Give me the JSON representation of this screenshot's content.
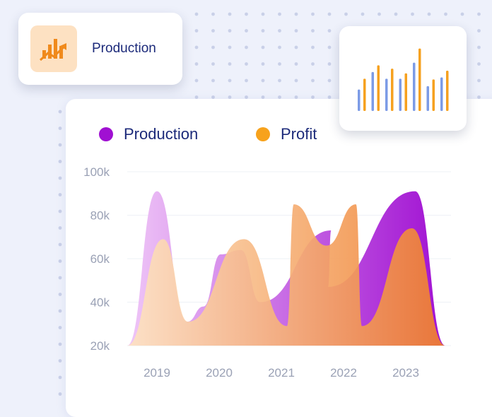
{
  "badge": {
    "title": "Production",
    "icon": "rising-bar-chart-icon"
  },
  "legend": [
    {
      "name": "Production",
      "color": "#a010d2"
    },
    {
      "name": "Profit",
      "color": "#f7a21c"
    }
  ],
  "colors": {
    "production_light": "#efc6f7",
    "production_dark": "#a010d2",
    "profit_light": "#fde3c3",
    "profit_dark": "#ef7e2c",
    "mini_blue": "#7c9be6",
    "mini_orange": "#f6a11f"
  },
  "chart_data": {
    "type": "area",
    "y_ticks": [
      "100k",
      "80k",
      "60k",
      "40k",
      "20k"
    ],
    "x_ticks": [
      "2019",
      "2020",
      "2021",
      "2022",
      "2023"
    ],
    "ylim": [
      20000,
      100000
    ],
    "grid": true,
    "series": [
      {
        "name": "Production",
        "peaks_x": [
          2019.0,
          2019.75,
          2020.35,
          2021.8,
          2023.15
        ],
        "peaks_y": [
          91000,
          38000,
          64000,
          73000,
          91000
        ]
      },
      {
        "name": "Profit",
        "peaks_x": [
          2019.1,
          2020.4,
          2021.2,
          2022.2,
          2023.1
        ],
        "peaks_y": [
          69000,
          69000,
          85000,
          85000,
          74000
        ]
      }
    ]
  },
  "mini_chart": {
    "type": "bar",
    "series": [
      {
        "name": "",
        "values": [
          32,
          58,
          48,
          48,
          72,
          37,
          50
        ]
      },
      {
        "name": "",
        "values": [
          48,
          68,
          63,
          56,
          93,
          47,
          60
        ]
      }
    ]
  }
}
